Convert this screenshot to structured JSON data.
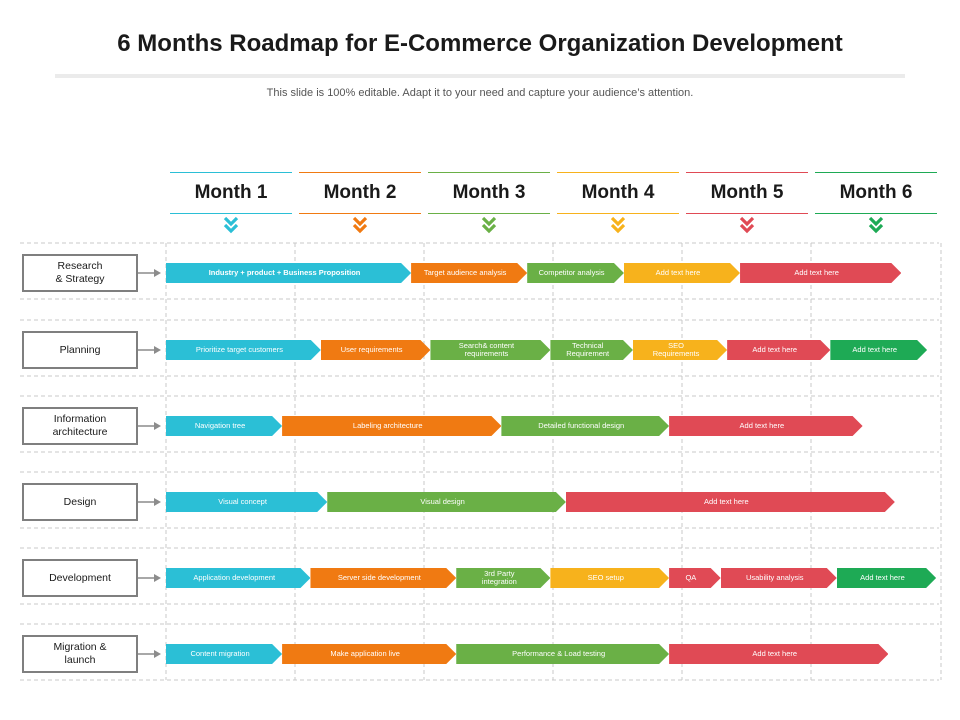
{
  "title": "6 Months Roadmap for E-Commerce Organization Development",
  "subtitle": "This slide is 100% editable. Adapt it to your need and capture your audience’s attention.",
  "colors": {
    "cyan": "#2bbfd6",
    "orange": "#f07a12",
    "green": "#6ab046",
    "yellow": "#f7b21c",
    "red": "#e04a55",
    "emerald": "#1eaa55"
  },
  "months": [
    {
      "label": "Month 1",
      "color": "#2bbfd6"
    },
    {
      "label": "Month 2",
      "color": "#f07a12"
    },
    {
      "label": "Month 3",
      "color": "#6ab046"
    },
    {
      "label": "Month 4",
      "color": "#f7b21c"
    },
    {
      "label": "Month 5",
      "color": "#e04a55"
    },
    {
      "label": "Month 6",
      "color": "#1eaa55"
    }
  ],
  "rows": [
    {
      "label": "Research\n& Strategy",
      "tasks": [
        {
          "text": "Industry + product + Business Proposition",
          "color": "cyan",
          "start": 0.0,
          "end": 1.9,
          "bold": true
        },
        {
          "text": "Target audience  analysis",
          "color": "orange",
          "start": 1.9,
          "end": 2.8
        },
        {
          "text": "Competitor analysis",
          "color": "green",
          "start": 2.8,
          "end": 3.55
        },
        {
          "text": "Add text here",
          "color": "yellow",
          "start": 3.55,
          "end": 4.45
        },
        {
          "text": "Add text here",
          "color": "red",
          "start": 4.45,
          "end": 5.7
        }
      ]
    },
    {
      "label": "Planning",
      "tasks": [
        {
          "text": "Prioritize target customers",
          "color": "cyan",
          "start": 0.0,
          "end": 1.2
        },
        {
          "text": "User requirements",
          "color": "orange",
          "start": 1.2,
          "end": 2.05
        },
        {
          "text": "Search& content\nrequirements",
          "color": "green",
          "start": 2.05,
          "end": 2.98
        },
        {
          "text": "Technical\nRequirement",
          "color": "green",
          "start": 2.98,
          "end": 3.62
        },
        {
          "text": "SEO\nRequirements",
          "color": "yellow",
          "start": 3.62,
          "end": 4.35
        },
        {
          "text": "Add text here",
          "color": "red",
          "start": 4.35,
          "end": 5.15
        },
        {
          "text": "Add text here",
          "color": "emerald",
          "start": 5.15,
          "end": 5.9
        }
      ]
    },
    {
      "label": "Information\narchitecture",
      "tasks": [
        {
          "text": "Navigation  tree",
          "color": "cyan",
          "start": 0.0,
          "end": 0.9
        },
        {
          "text": "Labeling  architecture",
          "color": "orange",
          "start": 0.9,
          "end": 2.6
        },
        {
          "text": "Detailed  functional  design",
          "color": "green",
          "start": 2.6,
          "end": 3.9
        },
        {
          "text": "Add text here",
          "color": "red",
          "start": 3.9,
          "end": 5.4
        }
      ]
    },
    {
      "label": "Design",
      "tasks": [
        {
          "text": "Visual concept",
          "color": "cyan",
          "start": 0.0,
          "end": 1.25
        },
        {
          "text": "Visual design",
          "color": "green",
          "start": 1.25,
          "end": 3.1
        },
        {
          "text": "Add text here",
          "color": "red",
          "start": 3.1,
          "end": 5.65
        }
      ]
    },
    {
      "label": "Development",
      "tasks": [
        {
          "text": "Application  development",
          "color": "cyan",
          "start": 0.0,
          "end": 1.12
        },
        {
          "text": "Server side development",
          "color": "orange",
          "start": 1.12,
          "end": 2.25
        },
        {
          "text": "3rd Party\nintegration",
          "color": "green",
          "start": 2.25,
          "end": 2.98
        },
        {
          "text": "SEO setup",
          "color": "yellow",
          "start": 2.98,
          "end": 3.9
        },
        {
          "text": "QA",
          "color": "red",
          "start": 3.9,
          "end": 4.3
        },
        {
          "text": "Usability analysis",
          "color": "red",
          "start": 4.3,
          "end": 5.2
        },
        {
          "text": "Add text here",
          "color": "emerald",
          "start": 5.2,
          "end": 5.97
        }
      ]
    },
    {
      "label": "Migration &\nlaunch",
      "tasks": [
        {
          "text": "Content migration",
          "color": "cyan",
          "start": 0.0,
          "end": 0.9
        },
        {
          "text": "Make application  live",
          "color": "orange",
          "start": 0.9,
          "end": 2.25
        },
        {
          "text": "Performance  & Load  testing",
          "color": "green",
          "start": 2.25,
          "end": 3.9
        },
        {
          "text": "Add text here",
          "color": "red",
          "start": 3.9,
          "end": 5.6
        }
      ]
    }
  ]
}
